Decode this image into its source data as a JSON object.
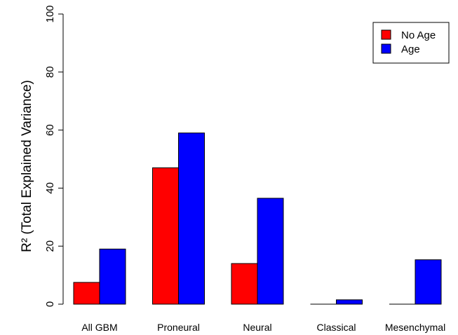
{
  "chart_data": {
    "type": "bar",
    "categories": [
      "All GBM",
      "Proneural",
      "Neural",
      "Classical",
      "Mesenchymal"
    ],
    "series": [
      {
        "name": "No Age",
        "color": "#ff0000",
        "values": [
          7.5,
          47,
          14,
          0,
          0
        ]
      },
      {
        "name": "Age",
        "color": "#0000ff",
        "values": [
          19,
          59,
          36.5,
          1.5,
          15.3
        ]
      }
    ],
    "ylabel": "R² (Total Explained Variance)",
    "ylim": [
      0,
      100
    ],
    "yticks": [
      "0",
      "20",
      "40",
      "60",
      "80",
      "100"
    ],
    "legend_position": "top-right",
    "grid": false
  }
}
